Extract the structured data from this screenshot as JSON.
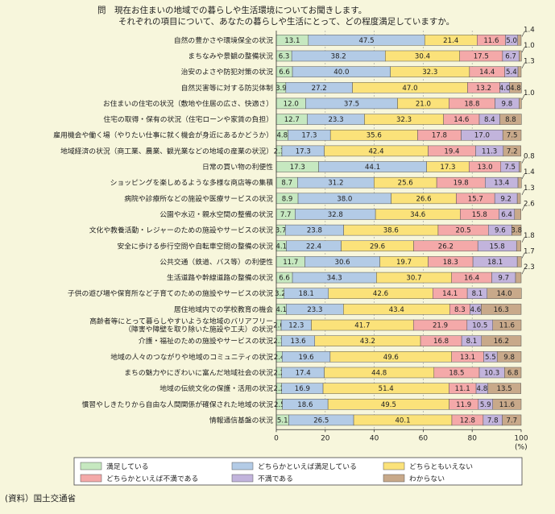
{
  "title": {
    "line1": "問　現在お住まいの地域での暮らしや生活環境についてお聞きします。",
    "line2": "それぞれの項目について、あなたの暮らしや生活にとって、どの程度満足していますか。"
  },
  "source": "(資料）国土交通省",
  "chart_data": {
    "type": "bar",
    "orientation": "horizontal",
    "stacked": true,
    "xlim": [
      0,
      100
    ],
    "x_ticks": [
      "0",
      "20",
      "40",
      "60",
      "80",
      "100"
    ],
    "x_unit": "(%)",
    "categories": [
      "自然の豊かさや環境保全の状況",
      "まちなみや景観の整備状況",
      "治安のよさや防犯対策の状況",
      "自然災害等に対する防災体制",
      "お住まいの住宅の状況（敷地や住居の広さ、快適さ）",
      "住宅の取得・保有の状況（住宅ローンや家賃の負担）",
      "雇用機会や働く場（やりたい仕事に就く機会が身近にあるかどうか）",
      "地域経済の状況（商工業、農業、観光業などの地域の産業の状況）",
      "日常の買い物の利便性",
      "ショッピングを楽しめるような多様な商店等の集積",
      "病院や診療所などの施設や医療サービスの状況",
      "公園や水辺・親水空間の整備の状況",
      "文化や教養活動・レジャーのための施設やサービスの状況",
      "安全に歩ける歩行空間や自転車空間の整備の状況",
      "公共交通（鉄道、バス等）の利便性",
      "生活道路や幹線道路の整備の状況",
      "子供の遊び場や保育所など子育てのための施設やサービスの状況",
      "居住地域内での学校教育の機会",
      "高齢者等にとって暮らしやすいような地域のバリアフリー\n（障害や障壁を取り除いた施設や工夫）の状況",
      "介護・福祉のための施設やサービスの状況",
      "地域の人々のつながりや地域のコミュニティの状況",
      "まちの魅力やにぎわいに富んだ地域社会の状況",
      "地域の伝統文化の保護・活用の状況",
      "慣習やしきたりから自由な人間関係が確保された地域の状況",
      "情報通信基盤の状況"
    ],
    "value_labels": [
      [
        "13.1",
        "47.5",
        "21.4",
        "11.6",
        "5.0",
        "1.4"
      ],
      [
        "6.3",
        "38.2",
        "30.4",
        "17.5",
        "6.7",
        "1.0"
      ],
      [
        "6.6",
        "40.0",
        "32.3",
        "14.4",
        "5.4",
        "1.3"
      ],
      [
        "3.9",
        "27.2",
        "47.0",
        "13.2",
        "4.0",
        "4.8"
      ],
      [
        "12.0",
        "37.5",
        "21.0",
        "18.8",
        "9.8",
        "1.0"
      ],
      [
        "12.7",
        "23.3",
        "32.3",
        "14.6",
        "8.4",
        "8.8"
      ],
      [
        "4.8",
        "17.3",
        "35.6",
        "17.8",
        "17.0",
        "7.5"
      ],
      [
        "2.3",
        "17.3",
        "42.4",
        "19.4",
        "11.3",
        "7.2"
      ],
      [
        "17.3",
        "44.1",
        "17.3",
        "13.0",
        "7.5",
        "0.8"
      ],
      [
        "8.7",
        "31.2",
        "25.6",
        "19.8",
        "13.4",
        "1.4"
      ],
      [
        "8.9",
        "38.0",
        "26.6",
        "15.7",
        "9.2",
        "1.3"
      ],
      [
        "7.7",
        "32.8",
        "34.6",
        "15.8",
        "6.4",
        "2.6"
      ],
      [
        "3.7",
        "23.8",
        "38.6",
        "20.5",
        "9.6",
        "3.8"
      ],
      [
        "4.1",
        "22.4",
        "29.6",
        "26.2",
        "15.8",
        "1.8"
      ],
      [
        "11.7",
        "30.6",
        "19.7",
        "18.3",
        "18.1",
        "1.7"
      ],
      [
        "6.6",
        "34.3",
        "30.7",
        "16.4",
        "9.7",
        "2.3"
      ],
      [
        "3.2",
        "18.1",
        "42.6",
        "14.1",
        "8.1",
        "14.0"
      ],
      [
        "4.1",
        "23.3",
        "43.4",
        "8.3",
        "4.6",
        "16.3"
      ],
      [
        "2.0",
        "12.3",
        "41.7",
        "21.9",
        "10.5",
        "11.6"
      ],
      [
        "2.1",
        "13.6",
        "43.2",
        "16.8",
        "8.1",
        "16.2"
      ],
      [
        "2.4",
        "19.6",
        "49.6",
        "13.1",
        "5.5",
        "9.8"
      ],
      [
        "2.2",
        "17.4",
        "44.8",
        "18.5",
        "10.3",
        "6.8"
      ],
      [
        "2.2",
        "16.9",
        "51.4",
        "11.1",
        "4.8",
        "13.5"
      ],
      [
        "2.5",
        "18.6",
        "49.5",
        "11.9",
        "5.9",
        "11.6"
      ],
      [
        "5.1",
        "26.5",
        "40.1",
        "12.8",
        "7.8",
        "7.7"
      ]
    ],
    "series": [
      {
        "name": "満足している",
        "color": "#c6e8c0",
        "values": [
          13.1,
          6.3,
          6.6,
          3.9,
          12.0,
          12.7,
          4.8,
          2.3,
          17.3,
          8.7,
          8.9,
          7.7,
          3.7,
          4.1,
          11.7,
          6.6,
          3.2,
          4.1,
          2.0,
          2.1,
          2.4,
          2.2,
          2.2,
          2.5,
          5.1
        ]
      },
      {
        "name": "どちらかといえば満足している",
        "color": "#b3cbe6",
        "values": [
          47.5,
          38.2,
          40.0,
          27.2,
          37.5,
          23.3,
          17.3,
          17.3,
          44.1,
          31.2,
          38.0,
          32.8,
          23.8,
          22.4,
          30.6,
          34.3,
          18.1,
          23.3,
          12.3,
          13.6,
          19.6,
          17.4,
          16.9,
          18.6,
          26.5
        ]
      },
      {
        "name": "どちらともいえない",
        "color": "#fbe27a",
        "values": [
          21.4,
          30.4,
          32.3,
          47.0,
          21.0,
          32.3,
          35.6,
          42.4,
          17.3,
          25.6,
          26.6,
          34.6,
          38.6,
          29.6,
          19.7,
          30.7,
          42.6,
          43.4,
          41.7,
          43.2,
          49.6,
          44.8,
          51.4,
          49.5,
          40.1
        ]
      },
      {
        "name": "どちらかといえば不満である",
        "color": "#f4a9a9",
        "values": [
          11.6,
          17.5,
          14.4,
          13.2,
          18.8,
          14.6,
          17.8,
          19.4,
          13.0,
          19.8,
          15.7,
          15.8,
          20.5,
          26.2,
          18.3,
          16.4,
          14.1,
          8.3,
          21.9,
          16.8,
          13.1,
          18.5,
          11.1,
          11.9,
          12.8
        ]
      },
      {
        "name": "不満である",
        "color": "#c2b4dc",
        "values": [
          5.0,
          6.7,
          5.4,
          4.0,
          9.8,
          8.4,
          17.0,
          11.3,
          7.5,
          13.4,
          9.2,
          6.4,
          9.6,
          15.8,
          18.1,
          9.7,
          8.1,
          4.6,
          10.5,
          8.1,
          5.5,
          10.3,
          4.8,
          5.9,
          7.8
        ]
      },
      {
        "name": "わからない",
        "color": "#c8a98a",
        "values": [
          1.4,
          1.0,
          1.3,
          4.8,
          1.0,
          8.8,
          7.5,
          7.2,
          0.8,
          1.4,
          1.3,
          2.6,
          3.8,
          1.8,
          1.7,
          2.3,
          14.0,
          16.3,
          11.6,
          16.2,
          9.8,
          6.8,
          13.5,
          11.6,
          7.7
        ]
      }
    ],
    "legend": "bottom"
  }
}
